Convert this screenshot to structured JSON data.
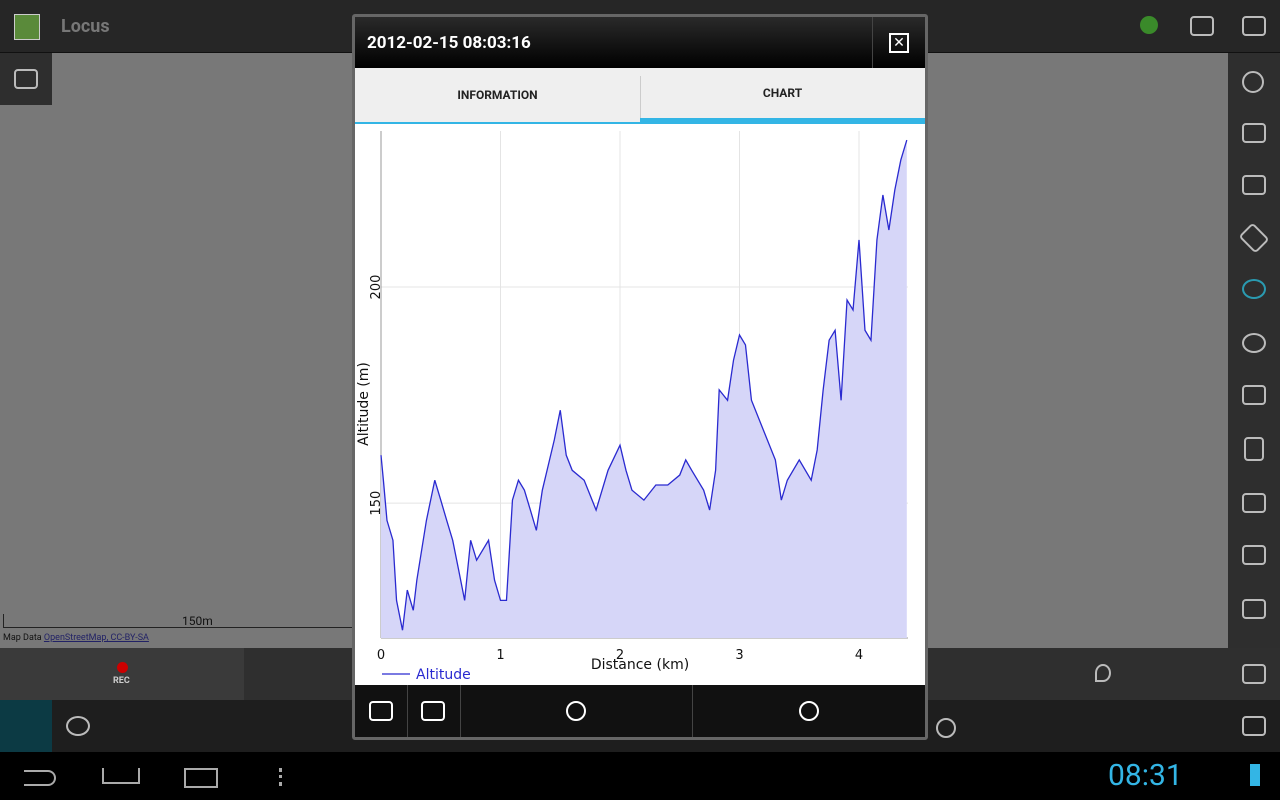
{
  "app": {
    "title": "Locus"
  },
  "map": {
    "scale": "150m",
    "attribution": "Map Data",
    "attribution_link": "OpenStreetMap, CC-BY-SA",
    "rec": "REC"
  },
  "dialog": {
    "title": "2012-02-15 08:03:16",
    "tabs": [
      "INFORMATION",
      "CHART"
    ]
  },
  "status_bar": {
    "time": "08:31"
  },
  "chart_data": {
    "type": "line",
    "x_label": "Distance (km)",
    "y_label": "Altitude (m)",
    "x": [
      0,
      0.02,
      0.05,
      0.1,
      0.13,
      0.18,
      0.22,
      0.27,
      0.3,
      0.38,
      0.45,
      0.5,
      0.55,
      0.6,
      0.65,
      0.7,
      0.75,
      0.8,
      0.9,
      0.95,
      1.0,
      1.05,
      1.1,
      1.15,
      1.2,
      1.25,
      1.3,
      1.35,
      1.4,
      1.45,
      1.5,
      1.55,
      1.6,
      1.7,
      1.8,
      1.9,
      2.0,
      2.05,
      2.1,
      2.2,
      2.3,
      2.4,
      2.5,
      2.55,
      2.6,
      2.7,
      2.75,
      2.8,
      2.83,
      2.9,
      2.95,
      3.0,
      3.05,
      3.1,
      3.2,
      3.3,
      3.35,
      3.4,
      3.5,
      3.6,
      3.65,
      3.7,
      3.75,
      3.8,
      3.85,
      3.9,
      3.95,
      4.0,
      4.05,
      4.1,
      4.15,
      4.2,
      4.25,
      4.3,
      4.35,
      4.4
    ],
    "series": [
      {
        "name": "Altitude",
        "color": "#2a2ad0",
        "fill": "#d6d6f8",
        "values": [
          161.1,
          155.3,
          146,
          141.4,
          127.5,
          120.6,
          129.9,
          125.2,
          132.2,
          146,
          155.3,
          150.7,
          146,
          141.4,
          134.5,
          127.5,
          141.4,
          136.8,
          141.4,
          132.2,
          127.5,
          127.5,
          150.7,
          155.3,
          153,
          148.4,
          143.7,
          153,
          158.8,
          164.6,
          171.5,
          161.1,
          157.6,
          155.3,
          148.4,
          157.6,
          163.4,
          157.6,
          153,
          150.7,
          154.2,
          154.2,
          156.5,
          160,
          157.6,
          153,
          148.4,
          157.6,
          176.2,
          173.8,
          183.1,
          188.9,
          186.6,
          173.8,
          166.9,
          160,
          150.7,
          155.3,
          160,
          155.3,
          162.3,
          176.2,
          187.7,
          190,
          173.8,
          197,
          194.7,
          210.9,
          190,
          187.7,
          210.9,
          221.3,
          213.2,
          222.5,
          229.4,
          234
        ]
      }
    ],
    "xlim": [
      0,
      4.41
    ],
    "ylim": [
      118.8,
      236.1
    ],
    "xticks": [
      0,
      1,
      2,
      3,
      4
    ],
    "yticks": [
      150,
      200
    ],
    "grid": true
  }
}
